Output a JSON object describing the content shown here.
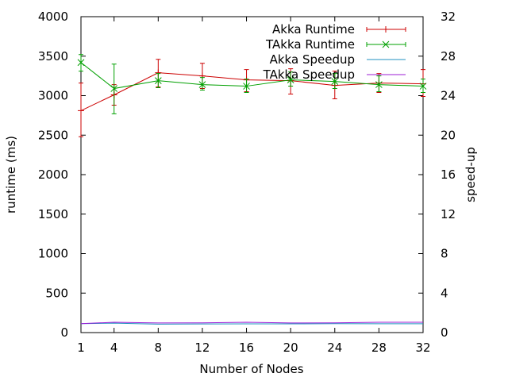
{
  "chart_data": {
    "type": "line",
    "title": "",
    "xlabel": "Number of Nodes",
    "ylabel": "runtime (ms)",
    "y2label": "speed-up",
    "x": [
      1,
      4,
      8,
      12,
      16,
      20,
      24,
      28,
      32
    ],
    "x_ticks": [
      "1",
      "4",
      "8",
      "12",
      "16",
      "20",
      "24",
      "28",
      "32"
    ],
    "xlim": [
      1,
      32
    ],
    "ylim": [
      0,
      4000
    ],
    "y_ticks": [
      "0",
      "500",
      "1000",
      "1500",
      "2000",
      "2500",
      "3000",
      "3500",
      "4000"
    ],
    "y2lim": [
      0,
      32
    ],
    "y2_ticks": [
      "0",
      "4",
      "8",
      "12",
      "16",
      "20",
      "24",
      "28",
      "32"
    ],
    "grid": false,
    "legend_position": "top-right",
    "series": [
      {
        "name": "Akka Runtime",
        "axis": "left",
        "color": "#cc0000",
        "marker": "plus",
        "values": [
          2810,
          3010,
          3290,
          3250,
          3200,
          3190,
          3130,
          3160,
          3150
        ],
        "err_low": [
          2480,
          2880,
          3110,
          3090,
          3050,
          3020,
          2960,
          3040,
          2990
        ],
        "err_high": [
          3160,
          3140,
          3460,
          3410,
          3330,
          3340,
          3310,
          3280,
          3330
        ]
      },
      {
        "name": "TAkka Runtime",
        "axis": "left",
        "color": "#00a000",
        "marker": "x",
        "values": [
          3420,
          3090,
          3190,
          3140,
          3120,
          3200,
          3180,
          3140,
          3120
        ],
        "err_low": [
          3310,
          2770,
          3100,
          3070,
          3040,
          3120,
          3090,
          3050,
          3040
        ],
        "err_high": [
          3520,
          3400,
          3280,
          3230,
          3210,
          3300,
          3280,
          3250,
          3210
        ]
      },
      {
        "name": "Akka Speedup",
        "axis": "right",
        "color": "#2090c0",
        "marker": "none",
        "values": [
          0.9,
          0.95,
          0.85,
          0.87,
          0.88,
          0.88,
          0.9,
          0.89,
          0.89
        ]
      },
      {
        "name": "TAkka Speedup",
        "axis": "right",
        "color": "#9c1cd6",
        "marker": "none",
        "values": [
          0.9,
          1.05,
          0.97,
          0.98,
          1.05,
          0.97,
          0.98,
          1.05,
          1.05
        ]
      }
    ]
  }
}
